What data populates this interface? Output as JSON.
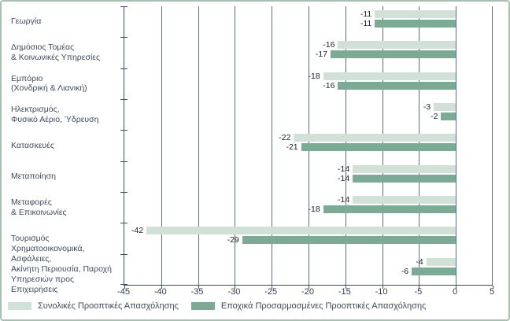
{
  "colors": {
    "frame_border": "#a7c0b2",
    "grid_line": "#5c6b85",
    "axis_line": "#3e4e6a",
    "label_text": "#3d4a5f",
    "value_text": "#1a1f26",
    "series_light": "#d2e1d8",
    "series_dark": "#7daa94"
  },
  "chart_data": {
    "type": "bar",
    "orientation": "horizontal",
    "title": "",
    "xlabel": "",
    "ylabel": "",
    "xlim": [
      -45,
      5
    ],
    "xticks": [
      -45,
      -40,
      -35,
      -30,
      -25,
      -20,
      -15,
      -10,
      -5,
      0,
      5
    ],
    "grid": true,
    "legend_position": "bottom",
    "categories": [
      [
        "Γεωργία"
      ],
      [
        "Δημόσιος Τομέας",
        "& Κοινωνικές Υπηρεσίες"
      ],
      [
        "Εμπόριο",
        "(Χονδρική & Λιανική)"
      ],
      [
        "Ηλεκτρισμός,",
        "Φυσικό Αέριο, Ύδρευση"
      ],
      [
        "Κατασκευές"
      ],
      [
        "Μεταποίηση"
      ],
      [
        "Μεταφορές",
        "& Επικοινωνίες"
      ],
      [
        "Τουρισμός"
      ],
      [
        "Χρηματοοικονομικά, Ασφάλειες,",
        "Ακίνητη Περιουσία, Παροχή",
        "Υπηρεσιών προς Επιχειρήσεις"
      ]
    ],
    "series": [
      {
        "name": "Συνολικές Προοπτικές Απασχόλησης",
        "color": "#d2e1d8",
        "values": [
          -11,
          -16,
          -18,
          -3,
          -22,
          -14,
          -14,
          -42,
          -4
        ]
      },
      {
        "name": "Εποχικά Προσαρμοσμένες Προοπτικές Απασχόλησης",
        "color": "#7daa94",
        "values": [
          -11,
          -17,
          -16,
          -2,
          -21,
          -14,
          -18,
          -29,
          -6
        ]
      }
    ]
  }
}
